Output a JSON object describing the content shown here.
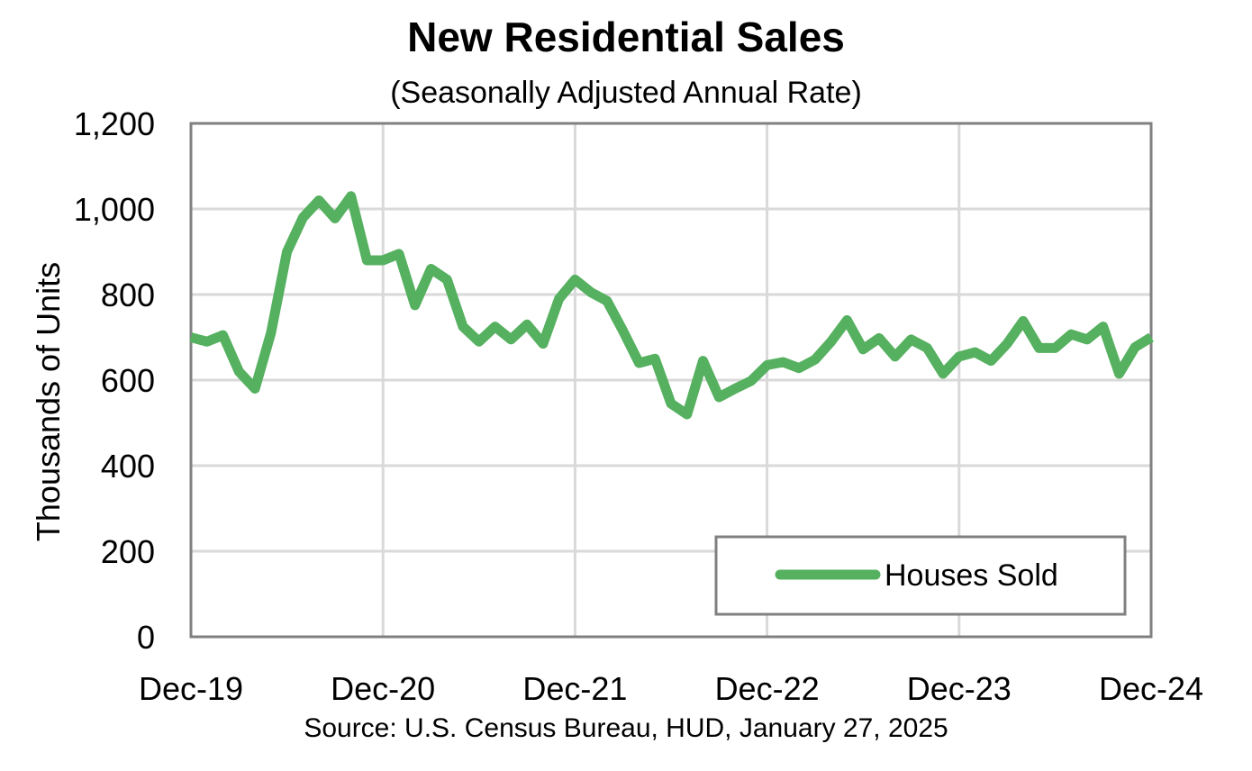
{
  "chart_data": {
    "type": "line",
    "title": "New Residential Sales",
    "subtitle": "(Seasonally Adjusted Annual Rate)",
    "ylabel": "Thousands of Units",
    "xlabel": "",
    "ylim": [
      0,
      1200
    ],
    "y_ticks": [
      "0",
      "200",
      "400",
      "600",
      "800",
      "1,000",
      "1,200"
    ],
    "y_tick_values": [
      0,
      200,
      400,
      600,
      800,
      1000,
      1200
    ],
    "x_ticks": [
      "Dec-19",
      "Dec-20",
      "Dec-21",
      "Dec-22",
      "Dec-23",
      "Dec-24"
    ],
    "x_tick_months": [
      0,
      12,
      24,
      36,
      48,
      60
    ],
    "grid": true,
    "legend_position": "bottom-right",
    "series": [
      {
        "name": "Houses Sold",
        "color": "#55b05f",
        "x": [
          "Dec-19",
          "Jan-20",
          "Feb-20",
          "Mar-20",
          "Apr-20",
          "May-20",
          "Jun-20",
          "Jul-20",
          "Aug-20",
          "Sep-20",
          "Oct-20",
          "Nov-20",
          "Dec-20",
          "Jan-21",
          "Feb-21",
          "Mar-21",
          "Apr-21",
          "May-21",
          "Jun-21",
          "Jul-21",
          "Aug-21",
          "Sep-21",
          "Oct-21",
          "Nov-21",
          "Dec-21",
          "Jan-22",
          "Feb-22",
          "Mar-22",
          "Apr-22",
          "May-22",
          "Jun-22",
          "Jul-22",
          "Aug-22",
          "Sep-22",
          "Oct-22",
          "Nov-22",
          "Dec-22",
          "Jan-23",
          "Feb-23",
          "Mar-23",
          "Apr-23",
          "May-23",
          "Jun-23",
          "Jul-23",
          "Aug-23",
          "Sep-23",
          "Oct-23",
          "Nov-23",
          "Dec-23",
          "Jan-24",
          "Feb-24",
          "Mar-24",
          "Apr-24",
          "May-24",
          "Jun-24",
          "Jul-24",
          "Aug-24",
          "Sep-24",
          "Oct-24",
          "Nov-24",
          "Dec-24"
        ],
        "values": [
          700,
          690,
          705,
          620,
          580,
          710,
          900,
          980,
          1020,
          978,
          1030,
          880,
          880,
          895,
          775,
          860,
          835,
          725,
          690,
          725,
          695,
          730,
          685,
          790,
          835,
          805,
          785,
          715,
          640,
          650,
          545,
          520,
          645,
          560,
          580,
          598,
          635,
          642,
          628,
          648,
          690,
          740,
          672,
          698,
          655,
          695,
          675,
          615,
          655,
          665,
          645,
          685,
          738,
          675,
          675,
          707,
          695,
          725,
          615,
          677,
          700
        ]
      }
    ]
  },
  "source": "Source:  U.S. Census Bureau, HUD, January 27, 2025"
}
